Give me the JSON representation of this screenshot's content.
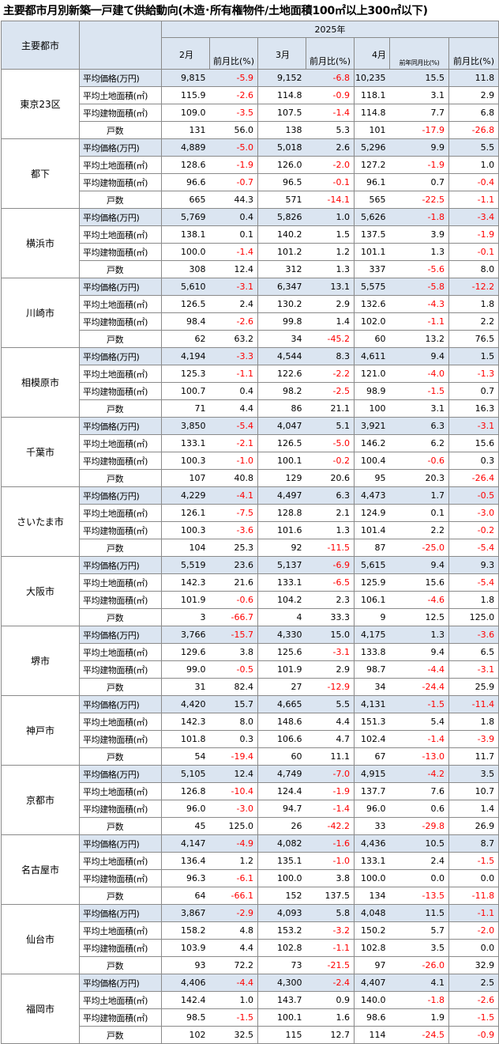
{
  "title": "主要都市月別新築一戸建て供給動向(木造･所有権物件/土地面積100㎡以上300㎡以下)",
  "header": {
    "city_col": "主要都市",
    "year": "2025年",
    "months": [
      "2月",
      "3月",
      "4月"
    ],
    "change_labels": [
      "前月比(%)",
      "前月比(%)",
      "前年同月比(%)",
      "前月比(%)"
    ]
  },
  "metric_labels": [
    "平均価格(万円)",
    "平均土地面積(㎡)",
    "平均建物面積(㎡)",
    "戸数"
  ],
  "colors": {
    "header_bg": "#dbe5f1",
    "negative": "#ff0000",
    "border": "#8a8a8a"
  },
  "cities": [
    {
      "name": "東京23区",
      "rows": [
        [
          "9,815",
          "-5.9",
          "9,152",
          "-6.8",
          "10,235",
          "15.5",
          "11.8"
        ],
        [
          "115.9",
          "-2.6",
          "114.8",
          "-0.9",
          "118.1",
          "3.1",
          "2.9"
        ],
        [
          "109.0",
          "-3.5",
          "107.5",
          "-1.4",
          "114.8",
          "7.7",
          "6.8"
        ],
        [
          "131",
          "56.0",
          "138",
          "5.3",
          "101",
          "-17.9",
          "-26.8"
        ]
      ]
    },
    {
      "name": "都下",
      "rows": [
        [
          "4,889",
          "-5.0",
          "5,018",
          "2.6",
          "5,296",
          "9.9",
          "5.5"
        ],
        [
          "128.6",
          "-1.9",
          "126.0",
          "-2.0",
          "127.2",
          "-1.9",
          "1.0"
        ],
        [
          "96.6",
          "-0.7",
          "96.5",
          "-0.1",
          "96.1",
          "0.7",
          "-0.4"
        ],
        [
          "665",
          "44.3",
          "571",
          "-14.1",
          "565",
          "-22.5",
          "-1.1"
        ]
      ]
    },
    {
      "name": "横浜市",
      "rows": [
        [
          "5,769",
          "0.4",
          "5,826",
          "1.0",
          "5,626",
          "-1.8",
          "-3.4"
        ],
        [
          "138.1",
          "0.1",
          "140.2",
          "1.5",
          "137.5",
          "3.9",
          "-1.9"
        ],
        [
          "100.0",
          "-1.4",
          "101.2",
          "1.2",
          "101.1",
          "1.3",
          "-0.1"
        ],
        [
          "308",
          "12.4",
          "312",
          "1.3",
          "337",
          "-5.6",
          "8.0"
        ]
      ]
    },
    {
      "name": "川崎市",
      "rows": [
        [
          "5,610",
          "-3.1",
          "6,347",
          "13.1",
          "5,575",
          "-5.8",
          "-12.2"
        ],
        [
          "126.5",
          "2.4",
          "130.2",
          "2.9",
          "132.6",
          "-4.3",
          "1.8"
        ],
        [
          "98.4",
          "-2.6",
          "99.8",
          "1.4",
          "102.0",
          "-1.1",
          "2.2"
        ],
        [
          "62",
          "63.2",
          "34",
          "-45.2",
          "60",
          "13.2",
          "76.5"
        ]
      ]
    },
    {
      "name": "相模原市",
      "rows": [
        [
          "4,194",
          "-3.3",
          "4,544",
          "8.3",
          "4,611",
          "9.4",
          "1.5"
        ],
        [
          "125.3",
          "-1.1",
          "122.6",
          "-2.2",
          "121.0",
          "-4.0",
          "-1.3"
        ],
        [
          "100.7",
          "0.4",
          "98.2",
          "-2.5",
          "98.9",
          "-1.5",
          "0.7"
        ],
        [
          "71",
          "4.4",
          "86",
          "21.1",
          "100",
          "3.1",
          "16.3"
        ]
      ]
    },
    {
      "name": "千葉市",
      "rows": [
        [
          "3,850",
          "-5.4",
          "4,047",
          "5.1",
          "3,921",
          "6.3",
          "-3.1"
        ],
        [
          "133.1",
          "-2.1",
          "126.5",
          "-5.0",
          "146.2",
          "6.2",
          "15.6"
        ],
        [
          "100.3",
          "-1.0",
          "100.1",
          "-0.2",
          "100.4",
          "-0.6",
          "0.3"
        ],
        [
          "107",
          "40.8",
          "129",
          "20.6",
          "95",
          "20.3",
          "-26.4"
        ]
      ]
    },
    {
      "name": "さいたま市",
      "rows": [
        [
          "4,229",
          "-4.1",
          "4,497",
          "6.3",
          "4,473",
          "1.7",
          "-0.5"
        ],
        [
          "126.1",
          "-7.5",
          "128.8",
          "2.1",
          "124.9",
          "0.1",
          "-3.0"
        ],
        [
          "100.3",
          "-3.6",
          "101.6",
          "1.3",
          "101.4",
          "2.2",
          "-0.2"
        ],
        [
          "104",
          "25.3",
          "92",
          "-11.5",
          "87",
          "-25.0",
          "-5.4"
        ]
      ]
    },
    {
      "name": "大阪市",
      "rows": [
        [
          "5,519",
          "23.6",
          "5,137",
          "-6.9",
          "5,615",
          "9.4",
          "9.3"
        ],
        [
          "142.3",
          "21.6",
          "133.1",
          "-6.5",
          "125.9",
          "15.6",
          "-5.4"
        ],
        [
          "101.9",
          "-0.6",
          "104.2",
          "2.3",
          "106.1",
          "-4.6",
          "1.8"
        ],
        [
          "3",
          "-66.7",
          "4",
          "33.3",
          "9",
          "12.5",
          "125.0"
        ]
      ]
    },
    {
      "name": "堺市",
      "rows": [
        [
          "3,766",
          "-15.7",
          "4,330",
          "15.0",
          "4,175",
          "1.3",
          "-3.6"
        ],
        [
          "129.6",
          "3.8",
          "125.6",
          "-3.1",
          "133.8",
          "9.4",
          "6.5"
        ],
        [
          "99.0",
          "-0.5",
          "101.9",
          "2.9",
          "98.7",
          "-4.4",
          "-3.1"
        ],
        [
          "31",
          "82.4",
          "27",
          "-12.9",
          "34",
          "-24.4",
          "25.9"
        ]
      ]
    },
    {
      "name": "神戸市",
      "rows": [
        [
          "4,420",
          "15.7",
          "4,665",
          "5.5",
          "4,131",
          "-1.5",
          "-11.4"
        ],
        [
          "142.3",
          "8.0",
          "148.6",
          "4.4",
          "151.3",
          "5.4",
          "1.8"
        ],
        [
          "101.8",
          "0.3",
          "106.6",
          "4.7",
          "102.4",
          "-1.4",
          "-3.9"
        ],
        [
          "54",
          "-19.4",
          "60",
          "11.1",
          "67",
          "-13.0",
          "11.7"
        ]
      ]
    },
    {
      "name": "京都市",
      "rows": [
        [
          "5,105",
          "12.4",
          "4,749",
          "-7.0",
          "4,915",
          "-4.2",
          "3.5"
        ],
        [
          "126.8",
          "-10.4",
          "124.4",
          "-1.9",
          "137.7",
          "7.6",
          "10.7"
        ],
        [
          "96.0",
          "-3.0",
          "94.7",
          "-1.4",
          "96.0",
          "0.6",
          "1.4"
        ],
        [
          "45",
          "125.0",
          "26",
          "-42.2",
          "33",
          "-29.8",
          "26.9"
        ]
      ]
    },
    {
      "name": "名古屋市",
      "rows": [
        [
          "4,147",
          "-4.9",
          "4,082",
          "-1.6",
          "4,436",
          "10.5",
          "8.7"
        ],
        [
          "136.4",
          "1.2",
          "135.1",
          "-1.0",
          "133.1",
          "2.4",
          "-1.5"
        ],
        [
          "96.3",
          "-6.1",
          "100.0",
          "3.8",
          "100.0",
          "0.0",
          "0.0"
        ],
        [
          "64",
          "-66.1",
          "152",
          "137.5",
          "134",
          "-13.5",
          "-11.8"
        ]
      ]
    },
    {
      "name": "仙台市",
      "rows": [
        [
          "3,867",
          "-2.9",
          "4,093",
          "5.8",
          "4,048",
          "11.5",
          "-1.1"
        ],
        [
          "158.2",
          "4.8",
          "153.2",
          "-3.2",
          "150.2",
          "5.7",
          "-2.0"
        ],
        [
          "103.9",
          "4.4",
          "102.8",
          "-1.1",
          "102.8",
          "3.5",
          "0.0"
        ],
        [
          "93",
          "72.2",
          "73",
          "-21.5",
          "97",
          "-26.0",
          "32.9"
        ]
      ]
    },
    {
      "name": "福岡市",
      "rows": [
        [
          "4,406",
          "-4.4",
          "4,300",
          "-2.4",
          "4,407",
          "4.1",
          "2.5"
        ],
        [
          "142.4",
          "1.0",
          "143.7",
          "0.9",
          "140.0",
          "-1.8",
          "-2.6"
        ],
        [
          "98.5",
          "-1.5",
          "100.1",
          "1.6",
          "98.6",
          "1.9",
          "-1.5"
        ],
        [
          "102",
          "32.5",
          "115",
          "12.7",
          "114",
          "-24.5",
          "-0.9"
        ]
      ]
    }
  ]
}
